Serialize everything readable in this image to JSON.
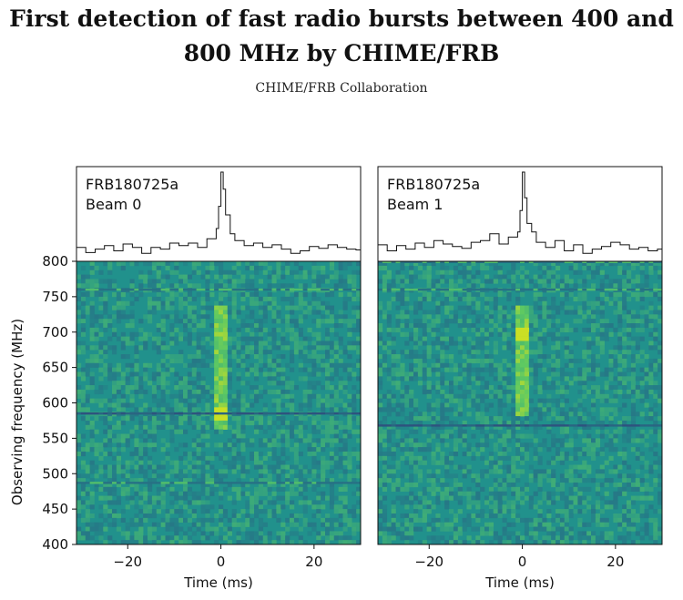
{
  "paper": {
    "title": "First detection of fast radio bursts between 400 and 800 MHz by CHIME/FRB",
    "authors": "CHIME/FRB Collaboration"
  },
  "colors": {
    "background": "#21918c",
    "dark": "#31427a",
    "light": "#5ec962",
    "bright": "#dfe318"
  },
  "chart_data": [
    {
      "type": "heatmap",
      "panel_label": [
        "FRB180725a",
        "Beam 0"
      ],
      "xlabel": "Time (ms)",
      "ylabel": "Observing frequency (MHz)",
      "xlim": [
        -31,
        30
      ],
      "ylim": [
        400,
        800
      ],
      "xticks": [
        -20,
        0,
        20
      ],
      "yticks": [
        400,
        450,
        500,
        550,
        600,
        650,
        700,
        750,
        800
      ],
      "burst_time_ms": 0,
      "burst_band_mhz": [
        560,
        735
      ],
      "brightest_freq_mhz": 585,
      "profile": {
        "times_ms": [
          -31,
          -29,
          -27,
          -25,
          -23,
          -21,
          -19,
          -17,
          -15,
          -13,
          -11,
          -9,
          -7,
          -5,
          -3,
          -1,
          -0.5,
          0,
          0.5,
          1,
          2,
          3,
          5,
          7,
          9,
          11,
          13,
          15,
          17,
          19,
          21,
          23,
          25,
          27,
          29
        ],
        "values": [
          0.12,
          0.06,
          0.1,
          0.14,
          0.08,
          0.16,
          0.12,
          0.05,
          0.12,
          0.1,
          0.17,
          0.14,
          0.17,
          0.12,
          0.22,
          0.34,
          0.6,
          1.0,
          0.8,
          0.5,
          0.28,
          0.2,
          0.14,
          0.17,
          0.12,
          0.15,
          0.1,
          0.05,
          0.08,
          0.13,
          0.11,
          0.15,
          0.12,
          0.1,
          0.09
        ]
      },
      "rfi_lines_mhz": [
        585,
        487,
        760
      ]
    },
    {
      "type": "heatmap",
      "panel_label": [
        "FRB180725a",
        "Beam 1"
      ],
      "xlabel": "Time (ms)",
      "xlim": [
        -31,
        30
      ],
      "ylim": [
        400,
        800
      ],
      "xticks": [
        -20,
        0,
        20
      ],
      "burst_time_ms": 0,
      "burst_band_mhz": [
        580,
        735
      ],
      "brightest_freq_mhz": 698,
      "profile": {
        "times_ms": [
          -31,
          -29,
          -27,
          -25,
          -23,
          -21,
          -19,
          -17,
          -15,
          -13,
          -11,
          -9,
          -7,
          -5,
          -3,
          -1,
          -0.5,
          0,
          0.5,
          1,
          2,
          3,
          5,
          7,
          9,
          11,
          13,
          15,
          17,
          19,
          21,
          23,
          25,
          27,
          29
        ],
        "values": [
          0.15,
          0.08,
          0.14,
          0.1,
          0.17,
          0.12,
          0.2,
          0.16,
          0.13,
          0.11,
          0.18,
          0.2,
          0.28,
          0.16,
          0.24,
          0.3,
          0.55,
          1.0,
          0.7,
          0.4,
          0.3,
          0.18,
          0.12,
          0.2,
          0.08,
          0.15,
          0.05,
          0.1,
          0.13,
          0.18,
          0.15,
          0.1,
          0.12,
          0.08,
          0.1
        ]
      },
      "rfi_lines_mhz": [
        568,
        799,
        760
      ]
    }
  ]
}
